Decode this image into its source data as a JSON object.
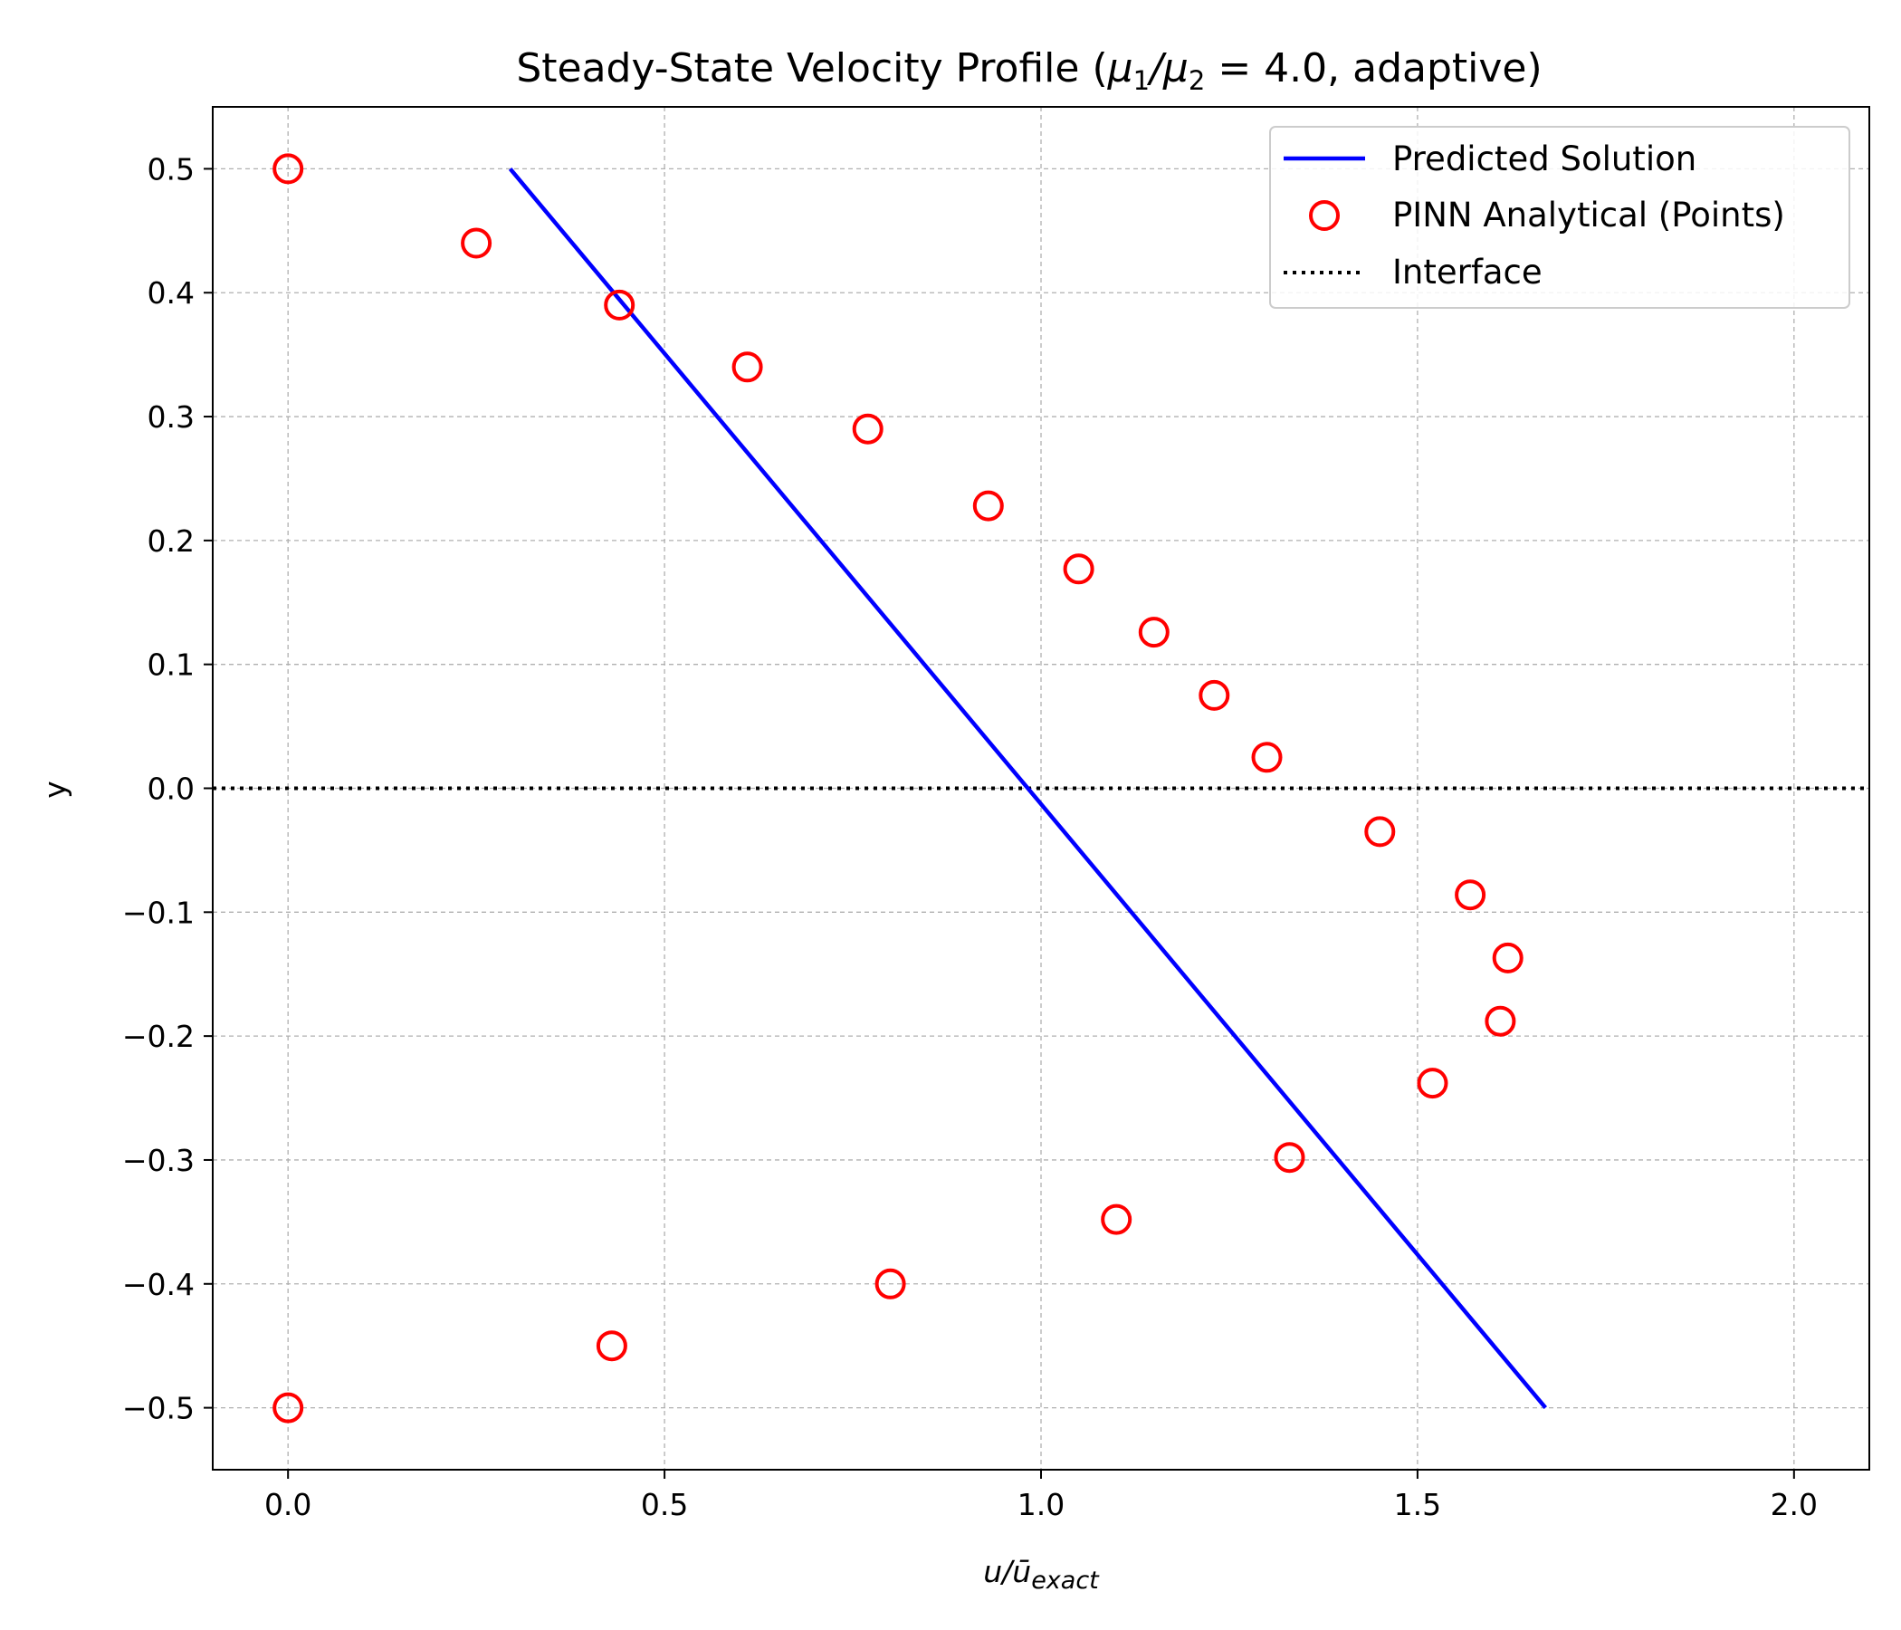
{
  "chart_data": {
    "type": "line",
    "title": "Steady-State Velocity Profile (μ1/μ2 = 4.0, adaptive)",
    "xlabel": "u/ū_exact",
    "ylabel": "y",
    "xlim": [
      -0.1,
      2.1
    ],
    "ylim": [
      -0.55,
      0.55
    ],
    "xticks": [
      0.0,
      0.5,
      1.0,
      1.5,
      2.0
    ],
    "xtick_labels": [
      "0.0",
      "0.5",
      "1.0",
      "1.5",
      "2.0"
    ],
    "yticks": [
      0.5,
      0.4,
      0.3,
      0.2,
      0.1,
      0.0,
      -0.1,
      -0.2,
      -0.3,
      -0.4,
      -0.5
    ],
    "ytick_labels": [
      "0.5",
      "0.4",
      "0.3",
      "0.2",
      "0.1",
      "0.0",
      "−0.1",
      "−0.2",
      "−0.3",
      "−0.4",
      "−0.5"
    ],
    "grid": true,
    "legend_position": "top-right",
    "series": [
      {
        "name": "Predicted Solution",
        "kind": "line",
        "color": "#0000ff",
        "points": [
          [
            0.295,
            0.5
          ],
          [
            1.67,
            -0.5
          ]
        ]
      },
      {
        "name": "PINN Analytical (Points)",
        "kind": "scatter",
        "marker": "open-circle",
        "color": "#ff0000",
        "points": [
          [
            0.0,
            0.5
          ],
          [
            0.25,
            0.44
          ],
          [
            0.44,
            0.39
          ],
          [
            0.61,
            0.34
          ],
          [
            0.77,
            0.29
          ],
          [
            0.93,
            0.228
          ],
          [
            1.05,
            0.177
          ],
          [
            1.15,
            0.126
          ],
          [
            1.23,
            0.075
          ],
          [
            1.3,
            0.025
          ],
          [
            1.45,
            -0.035
          ],
          [
            1.57,
            -0.086
          ],
          [
            1.62,
            -0.137
          ],
          [
            1.61,
            -0.188
          ],
          [
            1.52,
            -0.238
          ],
          [
            1.33,
            -0.298
          ],
          [
            1.1,
            -0.348
          ],
          [
            0.8,
            -0.4
          ],
          [
            0.43,
            -0.45
          ],
          [
            0.0,
            -0.5
          ]
        ]
      },
      {
        "name": "Interface",
        "kind": "hline",
        "color": "#000000",
        "style": "dotted",
        "y": 0.0
      }
    ]
  }
}
